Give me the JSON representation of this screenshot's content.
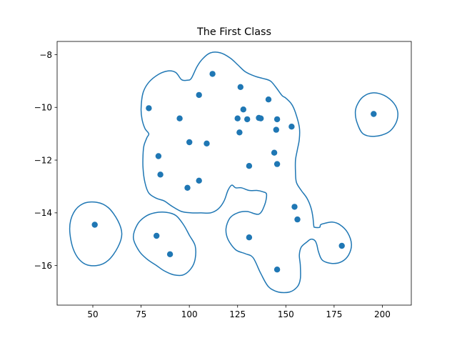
{
  "chart_data": {
    "type": "scatter",
    "title": "The First Class",
    "xlabel": "",
    "ylabel": "",
    "xlim": [
      31.5,
      215
    ],
    "ylim": [
      -17.5,
      -7.5
    ],
    "xticks": [
      50,
      75,
      100,
      125,
      150,
      175,
      200
    ],
    "yticks": [
      -16,
      -14,
      -12,
      -10,
      -8
    ],
    "grid": false,
    "point_color": "#1f77b4",
    "contour_color": "#1f77b4",
    "points": [
      [
        51,
        -14.45
      ],
      [
        83,
        -14.87
      ],
      [
        90,
        -15.57
      ],
      [
        79,
        -10.03
      ],
      [
        84,
        -11.85
      ],
      [
        85,
        -12.55
      ],
      [
        95,
        -10.42
      ],
      [
        100,
        -11.32
      ],
      [
        99,
        -13.05
      ],
      [
        105,
        -9.53
      ],
      [
        105,
        -12.78
      ],
      [
        109,
        -11.37
      ],
      [
        112,
        -8.73
      ],
      [
        125,
        -10.42
      ],
      [
        126,
        -10.95
      ],
      [
        126.5,
        -9.23
      ],
      [
        128,
        -10.08
      ],
      [
        130,
        -10.45
      ],
      [
        131,
        -12.22
      ],
      [
        131,
        -14.93
      ],
      [
        136,
        -10.4
      ],
      [
        137,
        -10.42
      ],
      [
        141,
        -9.7
      ],
      [
        144,
        -11.72
      ],
      [
        145,
        -10.85
      ],
      [
        145.5,
        -10.45
      ],
      [
        145.5,
        -12.15
      ],
      [
        145.5,
        -16.15
      ],
      [
        153,
        -10.73
      ],
      [
        154.5,
        -13.77
      ],
      [
        156,
        -14.25
      ],
      [
        179,
        -15.25
      ],
      [
        195.5,
        -10.25
      ]
    ],
    "contours": [
      [
        [
          38,
          -14.6
        ],
        [
          40,
          -14.0
        ],
        [
          45,
          -13.65
        ],
        [
          52,
          -13.6
        ],
        [
          58,
          -13.8
        ],
        [
          63,
          -14.3
        ],
        [
          65,
          -14.8
        ],
        [
          63,
          -15.3
        ],
        [
          58,
          -15.8
        ],
        [
          52,
          -16.0
        ],
        [
          45,
          -15.9
        ],
        [
          40,
          -15.4
        ],
        [
          38,
          -14.6
        ]
      ],
      [
        [
          186,
          -10.2
        ],
        [
          187,
          -9.9
        ],
        [
          190,
          -9.6
        ],
        [
          195,
          -9.45
        ],
        [
          201,
          -9.55
        ],
        [
          206,
          -9.85
        ],
        [
          208,
          -10.2
        ],
        [
          207,
          -10.6
        ],
        [
          203,
          -10.95
        ],
        [
          196,
          -11.1
        ],
        [
          190,
          -11.0
        ],
        [
          187,
          -10.6
        ],
        [
          186,
          -10.2
        ]
      ],
      [
        [
          71,
          -14.95
        ],
        [
          73,
          -14.45
        ],
        [
          77,
          -14.15
        ],
        [
          82,
          -14.0
        ],
        [
          88,
          -13.98
        ],
        [
          93,
          -14.1
        ],
        [
          97,
          -14.45
        ],
        [
          100,
          -14.85
        ],
        [
          103,
          -15.25
        ],
        [
          103,
          -15.75
        ],
        [
          101,
          -16.1
        ],
        [
          97,
          -16.35
        ],
        [
          92,
          -16.35
        ],
        [
          87,
          -16.2
        ],
        [
          83,
          -16.0
        ],
        [
          78,
          -15.75
        ],
        [
          74,
          -15.45
        ],
        [
          71,
          -14.95
        ]
      ],
      [
        [
          75,
          -10.05
        ],
        [
          76,
          -9.45
        ],
        [
          79,
          -9.05
        ],
        [
          84,
          -8.75
        ],
        [
          89,
          -8.62
        ],
        [
          93,
          -8.68
        ],
        [
          96,
          -8.95
        ],
        [
          99,
          -8.97
        ],
        [
          101,
          -8.9
        ],
        [
          104,
          -8.45
        ],
        [
          107,
          -8.15
        ],
        [
          111,
          -7.93
        ],
        [
          116,
          -7.93
        ],
        [
          121,
          -8.12
        ],
        [
          125,
          -8.38
        ],
        [
          129,
          -8.65
        ],
        [
          134,
          -8.82
        ],
        [
          138,
          -8.9
        ],
        [
          142,
          -9.0
        ],
        [
          145,
          -9.25
        ],
        [
          148,
          -9.55
        ],
        [
          150,
          -9.65
        ],
        [
          153,
          -9.88
        ],
        [
          155,
          -10.2
        ],
        [
          157,
          -10.75
        ],
        [
          157,
          -11.2
        ],
        [
          156,
          -11.6
        ],
        [
          155,
          -12.0
        ],
        [
          155,
          -12.45
        ],
        [
          155.5,
          -12.85
        ],
        [
          158,
          -13.15
        ],
        [
          161,
          -13.45
        ],
        [
          163,
          -13.8
        ],
        [
          164,
          -14.15
        ],
        [
          164.5,
          -14.5
        ],
        [
          165,
          -14.55
        ],
        [
          167.5,
          -14.55
        ],
        [
          168,
          -14.45
        ],
        [
          170,
          -14.4
        ],
        [
          174,
          -14.35
        ],
        [
          178,
          -14.45
        ],
        [
          182,
          -14.75
        ],
        [
          184,
          -15.2
        ],
        [
          182.5,
          -15.6
        ],
        [
          179,
          -15.85
        ],
        [
          174,
          -15.92
        ],
        [
          169,
          -15.8
        ],
        [
          167,
          -15.5
        ],
        [
          166,
          -15.2
        ],
        [
          165,
          -15.05
        ],
        [
          163,
          -15.0
        ],
        [
          161,
          -15.1
        ],
        [
          158,
          -15.3
        ],
        [
          157,
          -15.6
        ],
        [
          157.5,
          -16.0
        ],
        [
          157.5,
          -16.5
        ],
        [
          156,
          -16.8
        ],
        [
          152,
          -17.0
        ],
        [
          146,
          -17.0
        ],
        [
          141,
          -16.8
        ],
        [
          137,
          -16.3
        ],
        [
          133,
          -15.7
        ],
        [
          129,
          -15.55
        ],
        [
          124,
          -15.4
        ],
        [
          120,
          -15.0
        ],
        [
          119,
          -14.6
        ],
        [
          121,
          -14.2
        ],
        [
          125,
          -14.0
        ],
        [
          130,
          -13.95
        ],
        [
          136,
          -14.05
        ],
        [
          139,
          -13.7
        ],
        [
          140,
          -13.3
        ],
        [
          138,
          -13.2
        ],
        [
          135,
          -13.15
        ],
        [
          131,
          -13.15
        ],
        [
          127,
          -13.05
        ],
        [
          124,
          -13.05
        ],
        [
          122,
          -12.95
        ],
        [
          120,
          -13.15
        ],
        [
          118,
          -13.55
        ],
        [
          115,
          -13.85
        ],
        [
          111,
          -14.0
        ],
        [
          106,
          -14.0
        ],
        [
          101,
          -14.0
        ],
        [
          96,
          -13.95
        ],
        [
          91,
          -13.75
        ],
        [
          87,
          -13.55
        ],
        [
          83,
          -13.45
        ],
        [
          79,
          -13.25
        ],
        [
          77,
          -12.85
        ],
        [
          76,
          -12.3
        ],
        [
          76,
          -11.8
        ],
        [
          76.5,
          -11.45
        ],
        [
          78,
          -11.15
        ],
        [
          79,
          -11.0
        ],
        [
          77,
          -10.8
        ],
        [
          75.5,
          -10.45
        ],
        [
          75,
          -10.05
        ]
      ]
    ]
  }
}
